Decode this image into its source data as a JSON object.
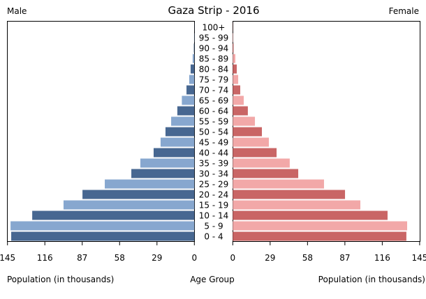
{
  "chart_data": {
    "type": "bar",
    "subtype": "population-pyramid",
    "title": "Gaza Strip - 2016",
    "left_label": "Male",
    "right_label": "Female",
    "xlabel_left": "Population (in thousands)",
    "xlabel_center": "Age Group",
    "xlabel_right": "Population (in thousands)",
    "xlim": [
      0,
      145
    ],
    "x_ticks": [
      "0",
      "29",
      "58",
      "87",
      "116",
      "145"
    ],
    "x_tick_values": [
      0,
      29,
      58,
      87,
      116,
      145
    ],
    "categories": [
      "0 - 4",
      "5 - 9",
      "10 - 14",
      "15 - 19",
      "20 - 24",
      "25 - 29",
      "30 - 34",
      "35 - 39",
      "40 - 44",
      "45 - 49",
      "50 - 54",
      "55 - 59",
      "60 - 64",
      "65 - 69",
      "70 - 74",
      "75 - 79",
      "80 - 84",
      "85 - 89",
      "90 - 94",
      "95 - 99",
      "100+"
    ],
    "series": [
      {
        "name": "Male",
        "values": [
          142.1,
          142.6,
          125.8,
          101.5,
          86.8,
          69.5,
          48.9,
          41.9,
          31.6,
          26.2,
          22.4,
          18.0,
          13.2,
          9.7,
          6.1,
          4.0,
          2.9,
          1.3,
          0.4,
          0.2,
          0.1
        ]
      },
      {
        "name": "Female",
        "values": [
          134.7,
          135.3,
          120.1,
          99.0,
          87.1,
          70.8,
          50.8,
          44.2,
          34.0,
          28.0,
          22.6,
          17.2,
          11.7,
          8.5,
          5.8,
          4.2,
          3.1,
          2.0,
          0.6,
          0.3,
          0.1
        ]
      }
    ],
    "colors": {
      "male_dark": "#476791",
      "male_light": "#87a7cf",
      "female_dark": "#c96565",
      "female_light": "#f2a8a8"
    },
    "grid": false
  }
}
